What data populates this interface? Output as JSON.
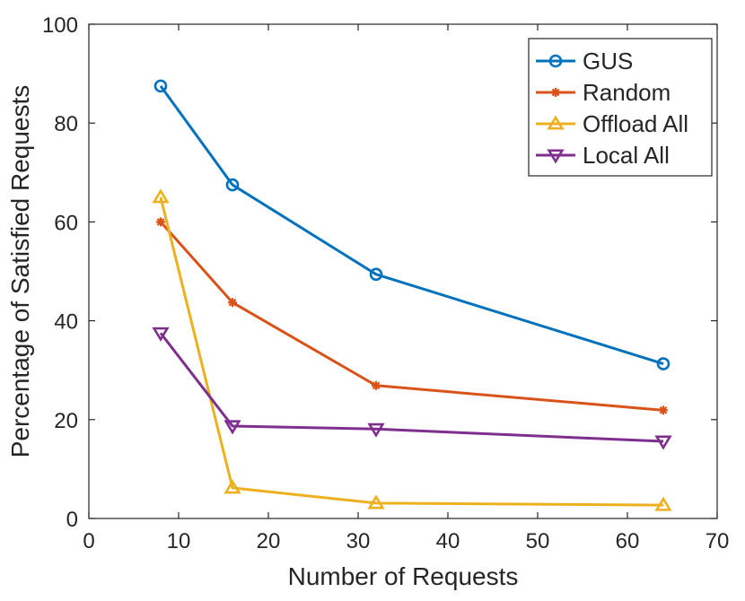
{
  "chart_data": {
    "type": "line",
    "title": "",
    "xlabel": "Number of Requests",
    "ylabel": "Percentage of Satisfied Requests",
    "xlim": [
      0,
      70
    ],
    "ylim": [
      0,
      100
    ],
    "xticks": [
      0,
      10,
      20,
      30,
      40,
      50,
      60,
      70
    ],
    "yticks": [
      0,
      20,
      40,
      60,
      80,
      100
    ],
    "grid": false,
    "legend_position": "top-right",
    "x": [
      8,
      16,
      32,
      64
    ],
    "series": [
      {
        "name": "GUS",
        "values": [
          87.5,
          67.5,
          49.4,
          31.3
        ],
        "color": "#0072BD",
        "marker": "circle"
      },
      {
        "name": "Random",
        "values": [
          60.0,
          43.7,
          26.9,
          21.9
        ],
        "color": "#D95319",
        "marker": "asterisk"
      },
      {
        "name": "Offload All",
        "values": [
          65.0,
          6.2,
          3.1,
          2.7
        ],
        "color": "#EDB120",
        "marker": "triangle-up"
      },
      {
        "name": "Local All",
        "values": [
          37.5,
          18.7,
          18.1,
          15.6
        ],
        "color": "#7E2F8E",
        "marker": "triangle-down"
      }
    ]
  }
}
